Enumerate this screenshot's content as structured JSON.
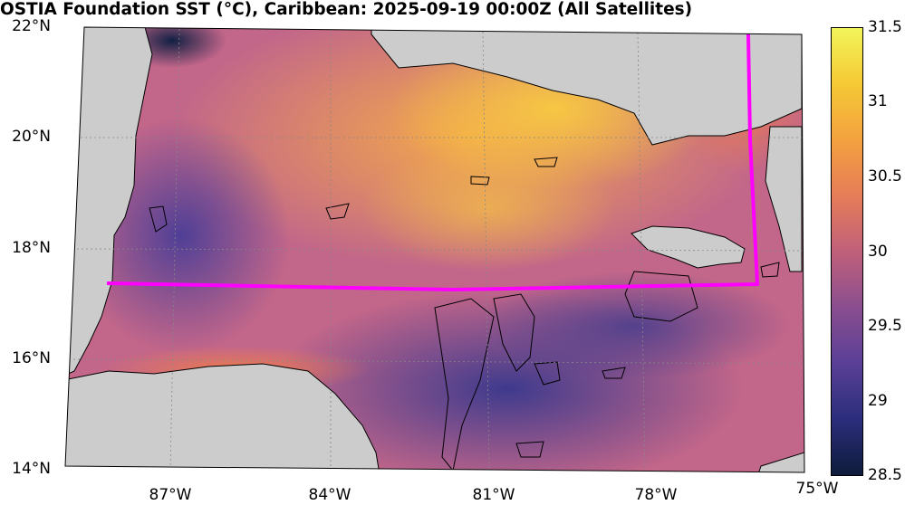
{
  "title": "OSTIA Foundation SST (°C), Caribbean: 2025-09-19 00:00Z (All Satellites)",
  "map": {
    "lat_labels": [
      "22°N",
      "20°N",
      "18°N",
      "16°N",
      "14°N"
    ],
    "lon_labels": [
      "87°W",
      "84°W",
      "81°W",
      "78°W",
      "75°W"
    ],
    "land_color": "#cccccc",
    "box_color": "#ff00ff",
    "graticule": "dotted"
  },
  "colorbar": {
    "ticks": [
      "31.5",
      "31",
      "30.5",
      "30",
      "29.5",
      "29",
      "28.5"
    ],
    "range": [
      28.5,
      31.5
    ],
    "colors": [
      "#0e1b3a",
      "#2b2e7c",
      "#5a3f97",
      "#8a4e8f",
      "#c0607a",
      "#e67d58",
      "#f3a13f",
      "#f5c935",
      "#f2f55a"
    ]
  }
}
